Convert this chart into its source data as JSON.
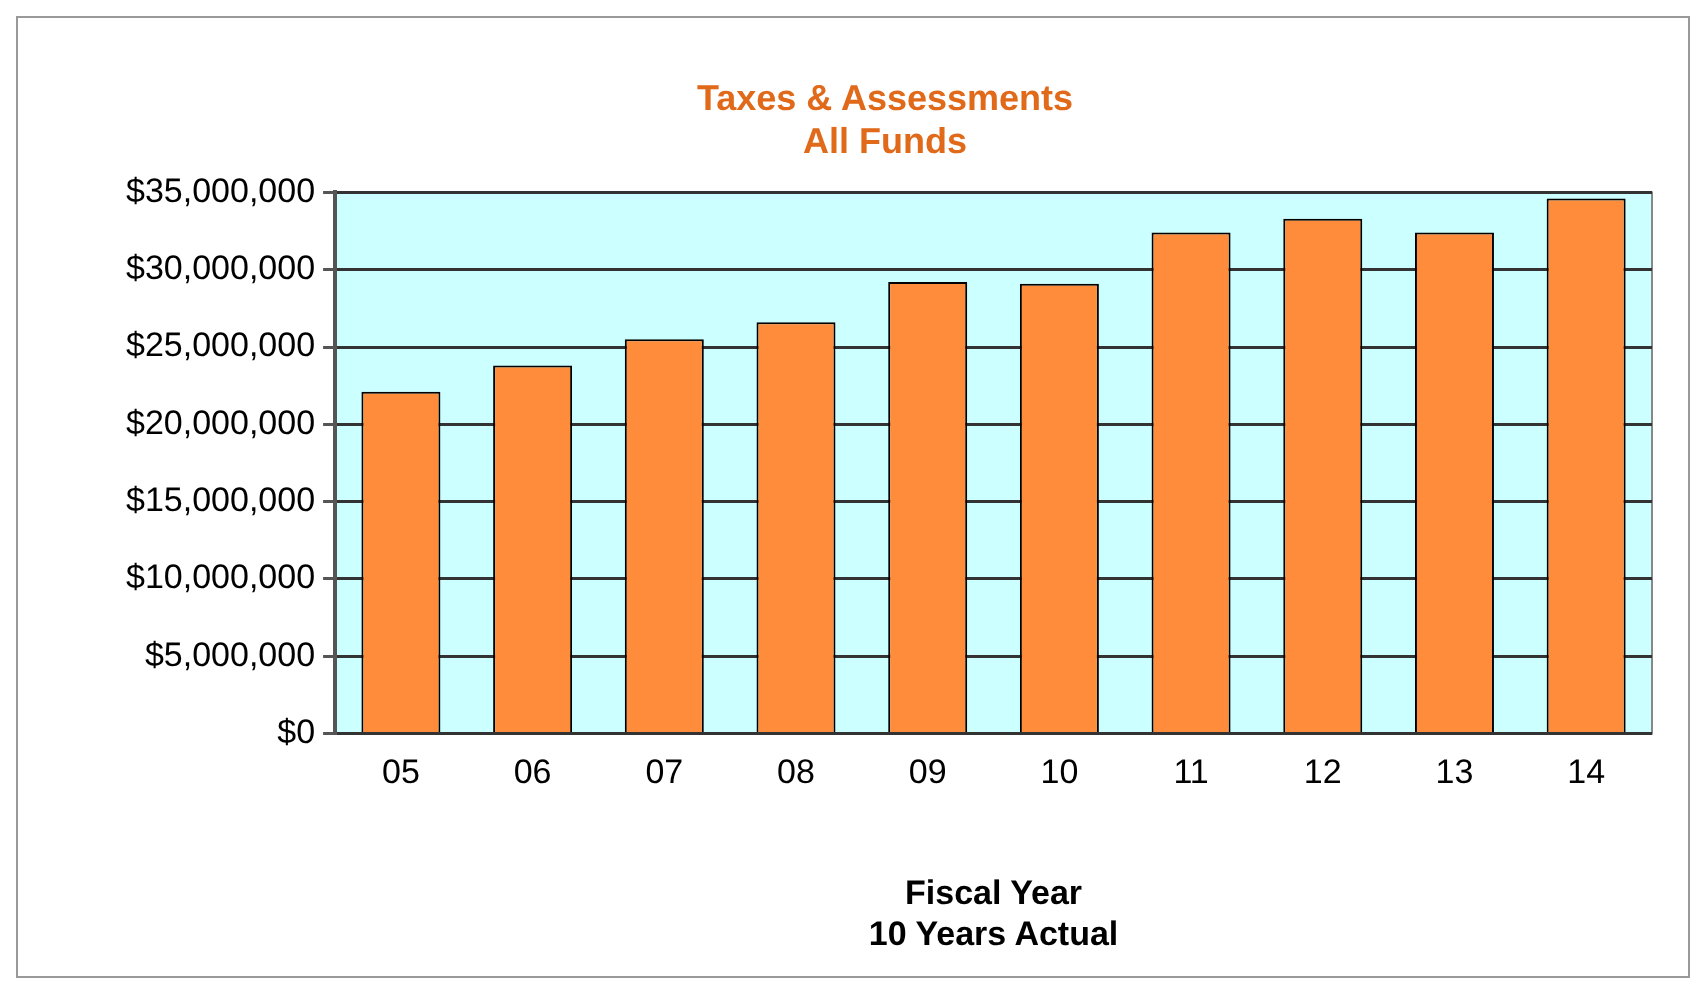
{
  "chart_data": {
    "type": "bar",
    "title": [
      "Taxes & Assessments",
      "All Funds"
    ],
    "xlabel": [
      "Fiscal Year",
      "10 Years Actual"
    ],
    "categories": [
      "05",
      "06",
      "07",
      "08",
      "09",
      "10",
      "11",
      "12",
      "13",
      "14"
    ],
    "values": [
      22100000,
      23800000,
      25500000,
      26600000,
      29200000,
      29100000,
      32400000,
      33300000,
      32400000,
      34600000
    ],
    "color": "#ff8c3a",
    "ylim": [
      0,
      35000000
    ],
    "yticks": [
      {
        "value": 0,
        "label": "$0"
      },
      {
        "value": 5000000,
        "label": "$5,000,000"
      },
      {
        "value": 10000000,
        "label": "$10,000,000"
      },
      {
        "value": 15000000,
        "label": "$15,000,000"
      },
      {
        "value": 20000000,
        "label": "$20,000,000"
      },
      {
        "value": 25000000,
        "label": "$25,000,000"
      },
      {
        "value": 30000000,
        "label": "$30,000,000"
      },
      {
        "value": 35000000,
        "label": "$35,000,000"
      }
    ],
    "grid": "y",
    "legend": false
  }
}
